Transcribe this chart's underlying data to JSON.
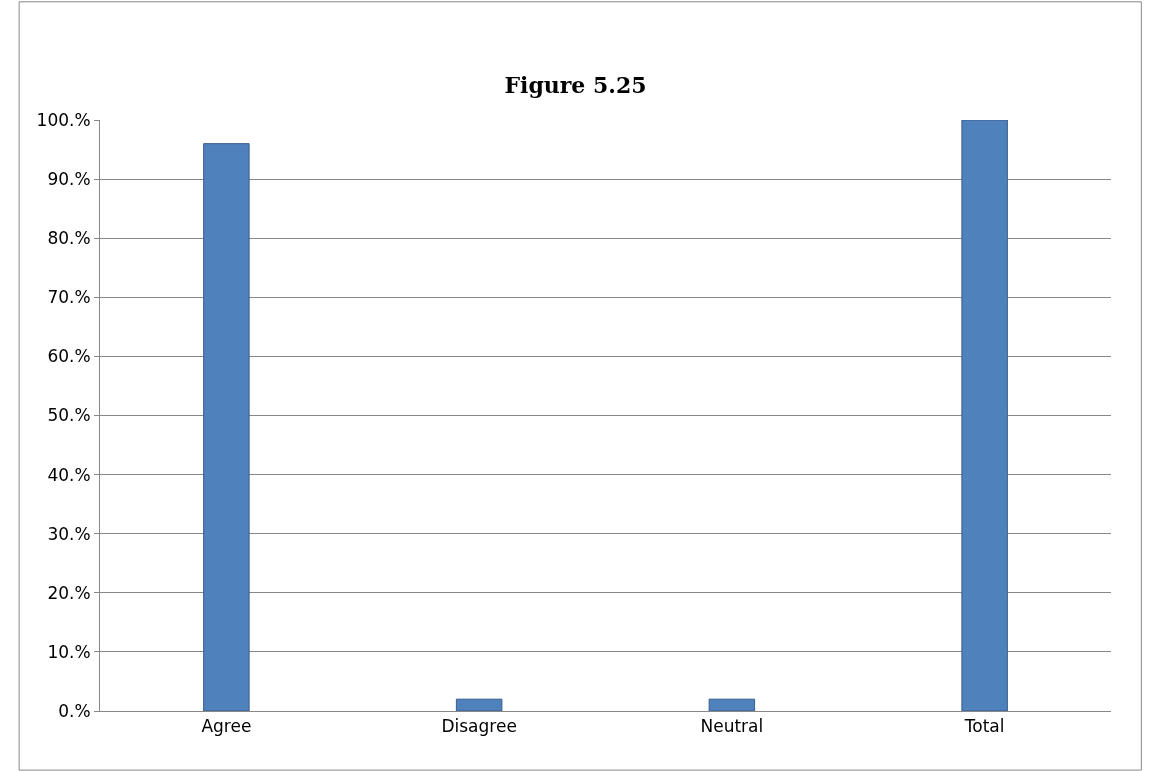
{
  "chart_data": {
    "type": "bar",
    "title": "Figure 5.25",
    "categories": [
      "Agree",
      "Disagree",
      "Neutral",
      "Total"
    ],
    "values": [
      96,
      2,
      2,
      100
    ],
    "color": "#4f81bd",
    "ylim": [
      0,
      100
    ],
    "yticks": [
      {
        "value": 0,
        "label": "0.%"
      },
      {
        "value": 10,
        "label": "10.%"
      },
      {
        "value": 20,
        "label": "20.%"
      },
      {
        "value": 30,
        "label": "30.%"
      },
      {
        "value": 40,
        "label": "40.%"
      },
      {
        "value": 50,
        "label": "50.%"
      },
      {
        "value": 60,
        "label": "60.%"
      },
      {
        "value": 70,
        "label": "70.%"
      },
      {
        "value": 80,
        "label": "80.%"
      },
      {
        "value": 90,
        "label": "90.%"
      },
      {
        "value": 100,
        "label": "100.%"
      }
    ],
    "grid": "y"
  }
}
